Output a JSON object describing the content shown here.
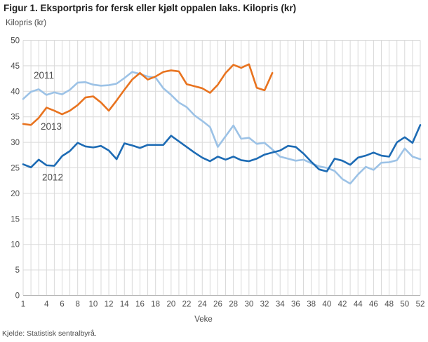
{
  "header": {
    "title": "Figur 1. Eksportpris for fersk eller kjølt oppalen laks. Kilopris (kr)"
  },
  "source": "Kjelde: Statistisk sentralbyrå.",
  "chart_data": {
    "type": "line",
    "title": "Figur 1. Eksportpris for fersk eller kjølt oppalen laks. Kilopris (kr)",
    "ylabel": "Kilopris (kr)",
    "xlabel": "Veke",
    "xlim": [
      1,
      52
    ],
    "ylim": [
      0,
      50
    ],
    "y_ticks": [
      0,
      5,
      10,
      15,
      20,
      25,
      30,
      35,
      40,
      45,
      50
    ],
    "x_tick_weeks": [
      1,
      4,
      6,
      8,
      10,
      12,
      14,
      16,
      18,
      20,
      22,
      24,
      26,
      28,
      30,
      32,
      34,
      36,
      38,
      40,
      42,
      44,
      46,
      48,
      50,
      52
    ],
    "weeks_total": 52,
    "grid": true,
    "legend": "inline-labels",
    "colors": {
      "grid": "#d9d9d9",
      "axis": "#b3b3b3",
      "tick_text": "#4d4d4d",
      "series_label_text": "#4d4d4d"
    },
    "series": [
      {
        "name": "2011",
        "color": "#9cc2e6",
        "start_week": 1,
        "values": [
          38.5,
          39.9,
          40.4,
          39.3,
          39.8,
          39.4,
          40.3,
          41.7,
          41.8,
          41.3,
          41.1,
          41.2,
          41.5,
          42.6,
          43.8,
          43.4,
          42.9,
          42.7,
          40.6,
          39.3,
          37.8,
          36.9,
          35.3,
          34.2,
          33.0,
          29.1,
          31.2,
          33.3,
          30.7,
          30.9,
          29.7,
          29.9,
          28.6,
          27.2,
          26.8,
          26.4,
          26.6,
          25.9,
          25.3,
          25.0,
          24.4,
          22.8,
          21.9,
          23.7,
          25.2,
          24.6,
          26.0,
          26.1,
          26.5,
          28.8,
          27.2,
          26.7
        ],
        "label": {
          "text": "2011",
          "week": 2.35,
          "value": 42.5
        }
      },
      {
        "name": "2013",
        "color": "#e8731f",
        "start_week": 1,
        "values": [
          33.6,
          33.4,
          34.8,
          36.8,
          36.2,
          35.5,
          36.2,
          37.3,
          38.8,
          39.0,
          37.8,
          36.2,
          38.2,
          40.3,
          42.3,
          43.6,
          42.3,
          42.9,
          43.8,
          44.1,
          43.9,
          41.4,
          41.0,
          40.6,
          39.7,
          41.3,
          43.6,
          45.2,
          44.6,
          45.3,
          40.7,
          40.2,
          43.6
        ],
        "label": {
          "text": "2013",
          "week": 3.25,
          "value": 32.5
        }
      },
      {
        "name": "2012",
        "color": "#1d6bb4",
        "start_week": 1,
        "values": [
          25.7,
          25.1,
          26.6,
          25.5,
          25.4,
          27.3,
          28.3,
          29.9,
          29.2,
          29.0,
          29.3,
          28.4,
          26.7,
          29.8,
          29.4,
          28.9,
          29.5,
          29.5,
          29.5,
          31.3,
          30.2,
          29.1,
          28.0,
          27.0,
          26.3,
          27.2,
          26.6,
          27.2,
          26.5,
          26.3,
          26.8,
          27.6,
          28.0,
          28.4,
          29.3,
          29.1,
          27.8,
          26.2,
          24.7,
          24.3,
          26.8,
          26.4,
          25.6,
          27.0,
          27.4,
          28.0,
          27.4,
          27.2,
          30.0,
          31.0,
          29.9,
          33.4
        ],
        "label": {
          "text": "2012",
          "week": 3.43,
          "value": 22.5
        }
      }
    ]
  }
}
